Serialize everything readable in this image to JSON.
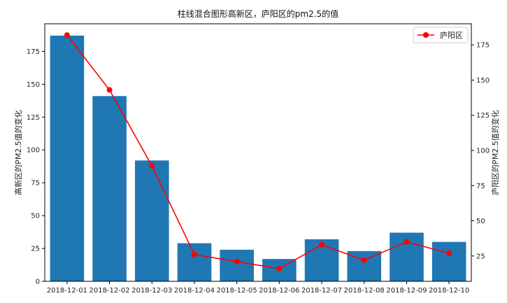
{
  "chart_data": {
    "type": "bar+line",
    "title": "柱线混合图形高新区，庐阳区的pm2.5的值",
    "categories": [
      "2018-12-01",
      "2018-12-02",
      "2018-12-03",
      "2018-12-04",
      "2018-12-05",
      "2018-12-06",
      "2018-12-07",
      "2018-12-08",
      "2018-12-09",
      "2018-12-10"
    ],
    "bar_series": {
      "name": "",
      "values": [
        187,
        141,
        92,
        29,
        24,
        17,
        32,
        23,
        37,
        30
      ],
      "color": "#1f77b4"
    },
    "line_series": {
      "name": "庐阳区",
      "values": [
        182,
        143,
        89,
        26,
        21,
        16,
        33,
        22,
        35,
        27
      ],
      "color": "#ff0000"
    },
    "y_left": {
      "label": "高新区的PM2.5值的变化",
      "range": [
        0,
        196
      ],
      "ticks": [
        0,
        25,
        50,
        75,
        100,
        125,
        150,
        175
      ]
    },
    "y_right": {
      "label": "庐阳区的PM2.5值的变化",
      "range": [
        7,
        190
      ],
      "ticks": [
        25,
        50,
        75,
        100,
        125,
        150,
        175
      ]
    },
    "legend": {
      "position": "top-right",
      "entries": [
        "庐阳区"
      ]
    },
    "grid": false
  }
}
